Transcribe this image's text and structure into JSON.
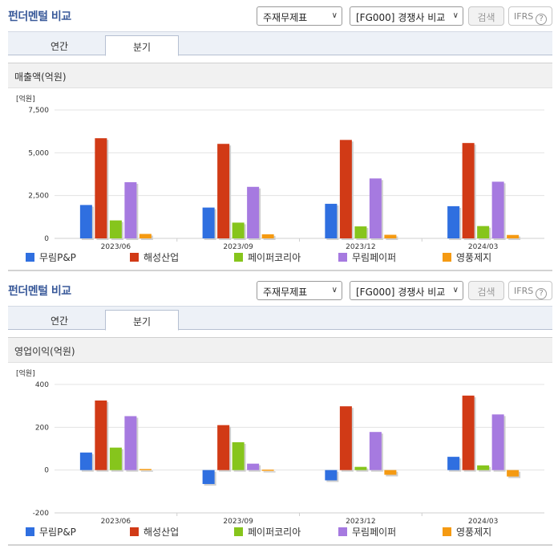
{
  "controls": {
    "statement_select": "주재무제표",
    "peer_select": "[FG000] 경쟁사 비교",
    "search_label": "검색",
    "ifrs_label": "IFRS",
    "help_glyph": "?"
  },
  "sections": [
    {
      "title": "펀더멘털 비교",
      "tabs": [
        "연간",
        "분기"
      ],
      "active_tab": 1,
      "chart_title": "매출액(억원)"
    },
    {
      "title": "펀더멘털 비교",
      "tabs": [
        "연간",
        "분기"
      ],
      "active_tab": 1,
      "chart_title": "영업이익(억원)"
    }
  ],
  "chart_data": [
    {
      "type": "bar",
      "title": "매출액(억원)",
      "unit_label": "[억원]",
      "categories": [
        "2023/06",
        "2023/09",
        "2023/12",
        "2024/03"
      ],
      "ylim": [
        0,
        7500
      ],
      "yticks": [
        0,
        2500,
        5000,
        7500
      ],
      "ytick_labels": [
        "0",
        "2,500",
        "5,000",
        "7,500"
      ],
      "series": [
        {
          "name": "무림P&P",
          "color": "#2f6fe0",
          "values": [
            1950,
            1800,
            2020,
            1880
          ]
        },
        {
          "name": "해성산업",
          "color": "#d13a16",
          "values": [
            5850,
            5520,
            5750,
            5570
          ]
        },
        {
          "name": "페이퍼코리아",
          "color": "#86c51c",
          "values": [
            1050,
            920,
            700,
            720
          ]
        },
        {
          "name": "무림페이퍼",
          "color": "#a67ae0",
          "values": [
            3280,
            3010,
            3500,
            3310
          ]
        },
        {
          "name": "영풍제지",
          "color": "#f59a12",
          "values": [
            260,
            240,
            210,
            200
          ]
        }
      ],
      "legend_position": "bottom"
    },
    {
      "type": "bar",
      "title": "영업이익(억원)",
      "unit_label": "[억원]",
      "categories": [
        "2023/06",
        "2023/09",
        "2023/12",
        "2024/03"
      ],
      "ylim": [
        -200,
        400
      ],
      "yticks": [
        -200,
        0,
        200,
        400
      ],
      "ytick_labels": [
        "-200",
        "0",
        "200",
        "400"
      ],
      "series": [
        {
          "name": "무림P&P",
          "color": "#2f6fe0",
          "values": [
            82,
            -65,
            -48,
            62
          ]
        },
        {
          "name": "해성산업",
          "color": "#d13a16",
          "values": [
            325,
            210,
            298,
            348
          ]
        },
        {
          "name": "페이퍼코리아",
          "color": "#86c51c",
          "values": [
            105,
            130,
            15,
            22
          ]
        },
        {
          "name": "무림페이퍼",
          "color": "#a67ae0",
          "values": [
            252,
            30,
            178,
            260
          ]
        },
        {
          "name": "영풍제지",
          "color": "#f59a12",
          "values": [
            5,
            2,
            -22,
            -30
          ]
        }
      ],
      "legend_position": "bottom"
    }
  ]
}
